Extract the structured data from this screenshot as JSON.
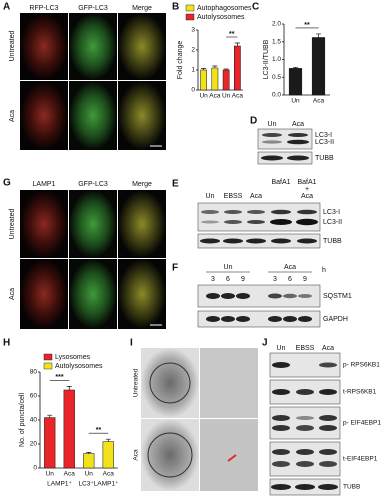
{
  "panels": {
    "A": {
      "label": "A",
      "columns": [
        "RFP-LC3",
        "GFP-LC3",
        "Merge"
      ],
      "rows": [
        "Untreated",
        "Aca"
      ]
    },
    "D": {
      "label": "D",
      "lanes": [
        "Un",
        "Aca"
      ],
      "bands": [
        "LC3-I",
        "LC3-II",
        "TUBB"
      ]
    },
    "E": {
      "label": "E",
      "lanes": [
        "Un",
        "EBSS",
        "Aca",
        "BafA1"
      ],
      "combo": [
        "BafA1",
        "+",
        "Aca"
      ],
      "bands": [
        "LC3-I",
        "LC3-II",
        "TUBB"
      ]
    },
    "F": {
      "label": "F",
      "groups": [
        "Un",
        "Aca"
      ],
      "unit": "h",
      "times": [
        3,
        6,
        9,
        3,
        6,
        9
      ],
      "bands": [
        "SQSTM1",
        "GAPDH"
      ]
    },
    "G": {
      "label": "G",
      "columns": [
        "LAMP1",
        "GFP-LC3",
        "Merge"
      ],
      "rows": [
        "Untreated",
        "Aca"
      ]
    },
    "I": {
      "label": "I",
      "rows": [
        "Untreated",
        "Aca"
      ]
    },
    "J": {
      "label": "J",
      "lanes": [
        "Un",
        "EBSS",
        "Aca"
      ],
      "bands": [
        "p- RPS6KB1",
        "t-RPS6KB1",
        "p- EIF4EBP1",
        "t-EIF4EBP1",
        "TUBB"
      ]
    }
  },
  "chart_data": [
    {
      "type": "bar",
      "label": "B",
      "ylabel": "Fold change",
      "categories": [
        "Un",
        "Aca",
        "Un",
        "Aca"
      ],
      "series": [
        {
          "name": "Autophagosomes",
          "color": "#f2e21c",
          "values": [
            1.0,
            1.1,
            null,
            null
          ],
          "errors": [
            0.08,
            0.1,
            null,
            null
          ]
        },
        {
          "name": "Autolysosomes",
          "color": "#e8262a",
          "values": [
            null,
            null,
            1.0,
            2.2
          ],
          "errors": [
            null,
            null,
            0.05,
            0.15
          ]
        }
      ],
      "ylim": [
        0,
        3
      ],
      "yticks": [
        0,
        1,
        2,
        3
      ],
      "annotations": [
        "**"
      ]
    },
    {
      "type": "bar",
      "label": "C",
      "ylabel": "LC3-II/TUBB",
      "categories": [
        "Un",
        "Aca"
      ],
      "series": [
        {
          "color": "#1a1a1a",
          "values": [
            0.75,
            1.62
          ],
          "errors": [
            0.03,
            0.1
          ]
        }
      ],
      "ylim": [
        0,
        2
      ],
      "yticks": [
        {
          "value": 0,
          "label": "0.0"
        },
        {
          "value": 0.5,
          "label": "0.5"
        },
        {
          "value": 1,
          "label": "1.0"
        },
        {
          "value": 1.5,
          "label": "1.5"
        },
        {
          "value": 2,
          "label": "2.0"
        }
      ],
      "annotations": [
        "**"
      ]
    },
    {
      "type": "bar",
      "label": "H",
      "ylabel": "No. of puncta/cell",
      "categories": [
        "Un",
        "Aca",
        "Un",
        "Aca"
      ],
      "groups": [
        "LAMP1⁺",
        "LC3⁺LAMP1⁺"
      ],
      "series": [
        {
          "name": "Lysosomes",
          "color": "#e8262a",
          "values": [
            42,
            65,
            null,
            null
          ],
          "errors": [
            2,
            3,
            null,
            null
          ]
        },
        {
          "name": "Autolysosomes",
          "color": "#f2e21c",
          "values": [
            null,
            null,
            12,
            22
          ],
          "errors": [
            null,
            null,
            1,
            2
          ]
        }
      ],
      "ylim": [
        0,
        80
      ],
      "yticks": [
        0,
        20,
        40,
        60,
        80
      ],
      "annotations": [
        "***",
        "**"
      ]
    }
  ]
}
